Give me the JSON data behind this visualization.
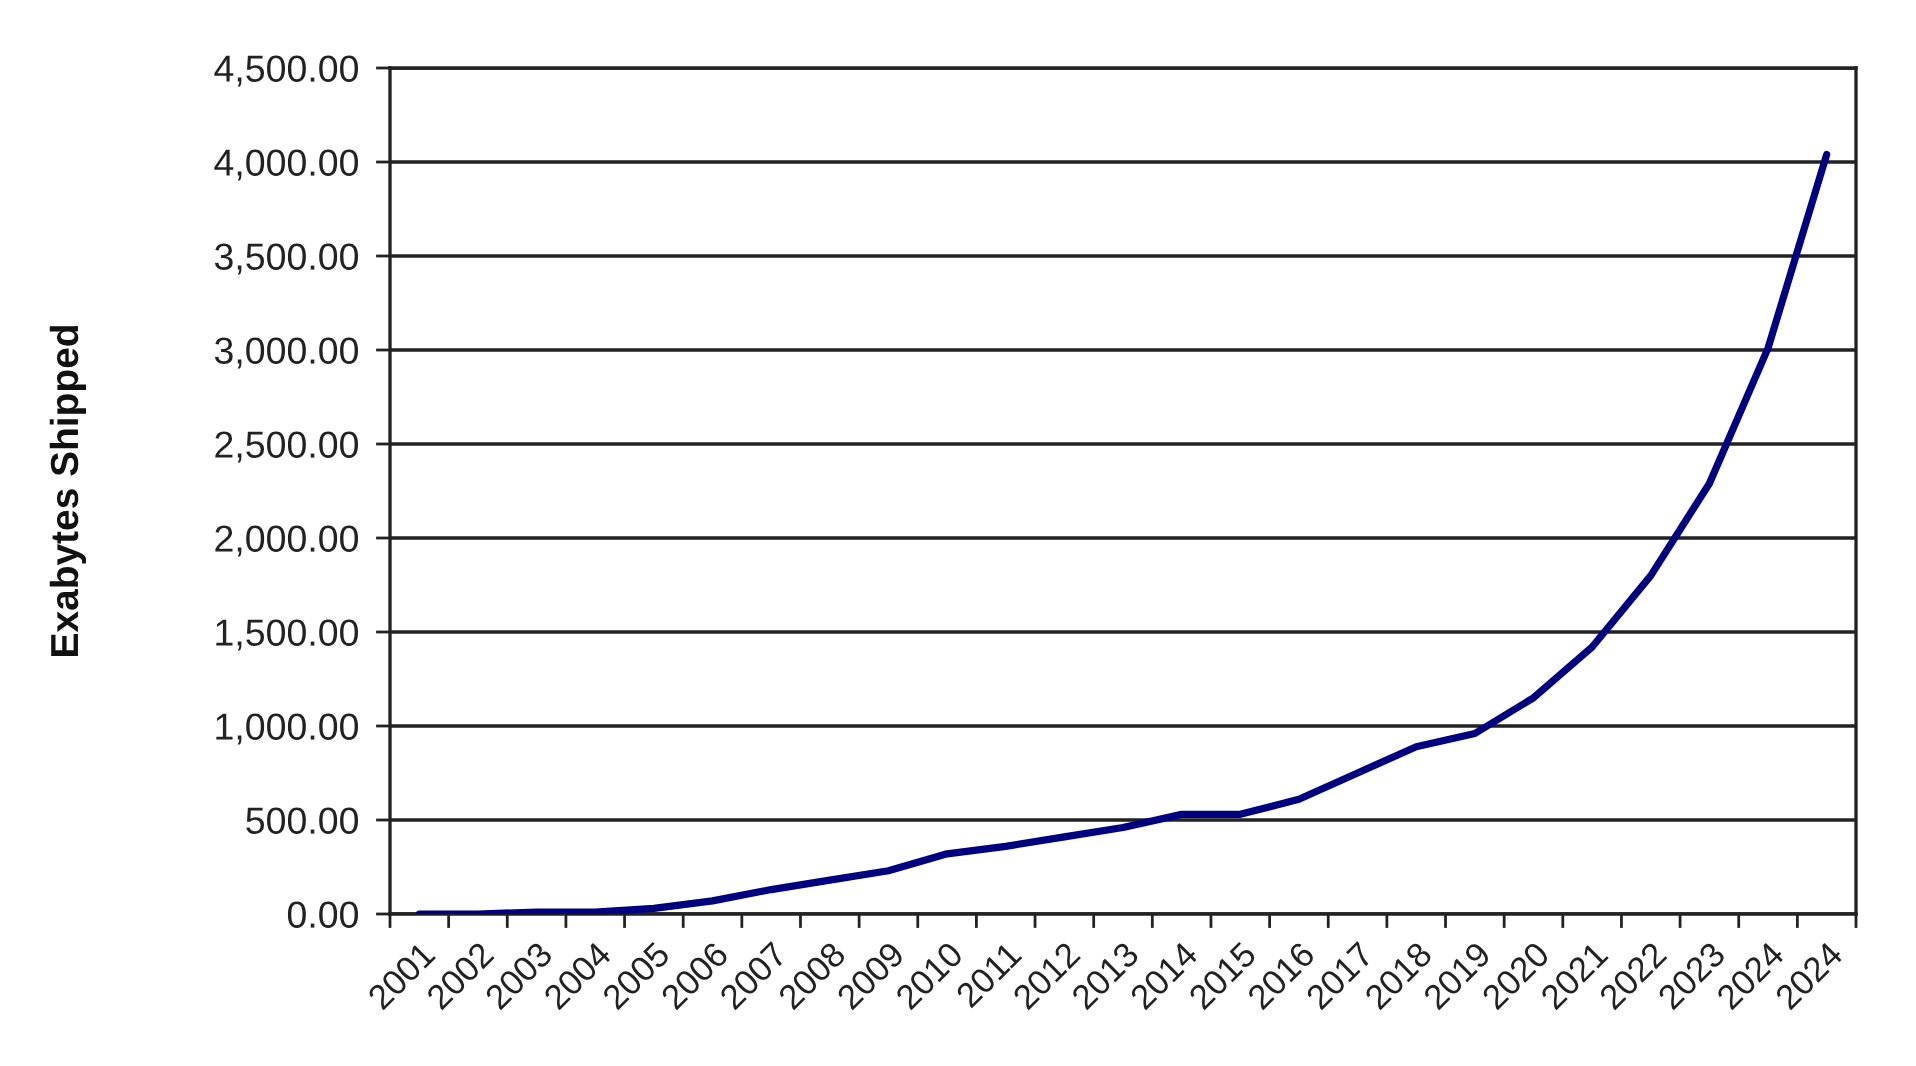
{
  "chart_data": {
    "type": "line",
    "ylabel": "Exabytes Shipped",
    "categories": [
      "2001",
      "2002",
      "2003",
      "2004",
      "2005",
      "2006",
      "2007",
      "2008",
      "2009",
      "2010",
      "2011",
      "2012",
      "2013",
      "2014",
      "2015",
      "2016",
      "2017",
      "2018",
      "2019",
      "2020",
      "2021",
      "2022",
      "2023",
      "2024",
      "2024"
    ],
    "series": [
      {
        "color": "#000080",
        "values": [
          0,
          0,
          10,
          10,
          30,
          70,
          130,
          180,
          230,
          320,
          360,
          410,
          460,
          530,
          530,
          610,
          750,
          890,
          960,
          1150,
          1420,
          1800,
          2290,
          3010,
          4040
        ]
      }
    ],
    "ylim": [
      0,
      4500
    ],
    "yticks": [
      {
        "value": 0,
        "label": "0.00"
      },
      {
        "value": 500,
        "label": "500.00"
      },
      {
        "value": 1000,
        "label": "1,000.00"
      },
      {
        "value": 1500,
        "label": "1,500.00"
      },
      {
        "value": 2000,
        "label": "2,000.00"
      },
      {
        "value": 2500,
        "label": "2,500.00"
      },
      {
        "value": 3000,
        "label": "3,000.00"
      },
      {
        "value": 3500,
        "label": "3,500.00"
      },
      {
        "value": 4000,
        "label": "4,000.00"
      },
      {
        "value": 4500,
        "label": "4,500.00"
      }
    ],
    "grid": "y"
  }
}
